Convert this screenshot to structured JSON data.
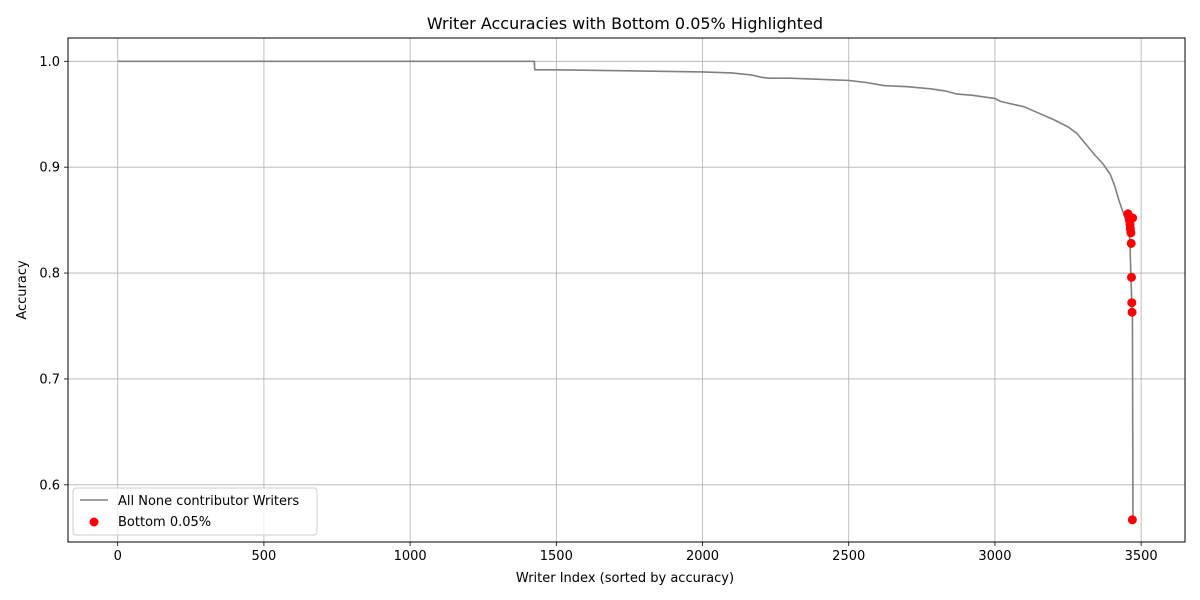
{
  "chart_data": {
    "type": "line",
    "title": "Writer Accuracies with Bottom 0.05% Highlighted",
    "xlabel": "Writer Index (sorted by accuracy)",
    "ylabel": "Accuracy",
    "xlim": [
      -170,
      3650
    ],
    "ylim": [
      0.546,
      1.022
    ],
    "xticks": [
      0,
      500,
      1000,
      1500,
      2000,
      2500,
      3000,
      3500
    ],
    "yticks": [
      0.6,
      0.7,
      0.8,
      0.9,
      1.0
    ],
    "xtick_labels": [
      "0",
      "500",
      "1000",
      "1500",
      "2000",
      "2500",
      "3000",
      "3500"
    ],
    "ytick_labels": [
      "0.6",
      "0.7",
      "0.8",
      "0.9",
      "1.0"
    ],
    "grid": true,
    "legend_position": "lower-left",
    "colors": {
      "line": "#808080",
      "points": "#ff0000",
      "grid": "#b0b0b0"
    },
    "series": [
      {
        "name": "All None contributor Writers",
        "kind": "line",
        "x": [
          0,
          1425,
          1426,
          1500,
          2000,
          2100,
          2170,
          2200,
          2225,
          2300,
          2500,
          2560,
          2620,
          2700,
          2780,
          2830,
          2870,
          2920,
          3000,
          3020,
          3100,
          3150,
          3200,
          3250,
          3280,
          3310,
          3340,
          3370,
          3395,
          3410,
          3425,
          3440,
          3450,
          3458,
          3462,
          3465,
          3468,
          3470,
          3472
        ],
        "y": [
          1.0,
          1.0,
          0.992,
          0.992,
          0.99,
          0.989,
          0.987,
          0.985,
          0.984,
          0.984,
          0.982,
          0.98,
          0.977,
          0.976,
          0.974,
          0.972,
          0.969,
          0.968,
          0.965,
          0.962,
          0.957,
          0.951,
          0.945,
          0.938,
          0.932,
          0.922,
          0.912,
          0.903,
          0.893,
          0.882,
          0.868,
          0.856,
          0.848,
          0.84,
          0.828,
          0.796,
          0.772,
          0.763,
          0.567
        ]
      },
      {
        "name": "Bottom 0.05%",
        "kind": "scatter",
        "x": [
          3455,
          3458,
          3460,
          3462,
          3463,
          3465,
          3466,
          3467,
          3468,
          3469,
          3470,
          3471
        ],
        "y": [
          0.856,
          0.854,
          0.85,
          0.846,
          0.842,
          0.838,
          0.828,
          0.796,
          0.772,
          0.763,
          0.567,
          0.852
        ]
      }
    ]
  }
}
